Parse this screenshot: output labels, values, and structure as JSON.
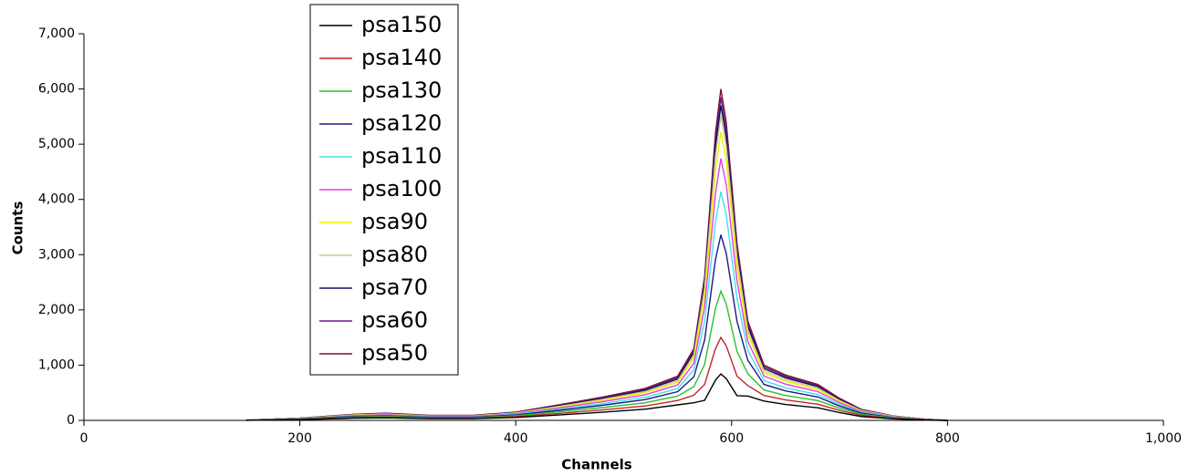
{
  "chart_data": {
    "type": "line",
    "xlabel": "Channels",
    "ylabel": "Counts",
    "xlim": [
      0,
      1000
    ],
    "ylim": [
      0,
      7000
    ],
    "xticks": [
      0,
      200,
      400,
      600,
      800,
      {
        "value": 1000,
        "label": "1,000"
      }
    ],
    "yticks": [
      0,
      {
        "value": 1000,
        "label": "1,000"
      },
      {
        "value": 2000,
        "label": "2,000"
      },
      {
        "value": 3000,
        "label": "3,000"
      },
      {
        "value": 4000,
        "label": "4,000"
      },
      {
        "value": 5000,
        "label": "5,000"
      },
      {
        "value": 6000,
        "label": "6,000"
      },
      {
        "value": 7000,
        "label": "7,000"
      }
    ],
    "legend": "top-left",
    "x": [
      150,
      200,
      250,
      280,
      320,
      360,
      400,
      440,
      480,
      520,
      550,
      565,
      575,
      585,
      590,
      595,
      605,
      615,
      630,
      650,
      680,
      700,
      720,
      750,
      780,
      800
    ],
    "series": [
      {
        "name": "psa150",
        "color": "#000000",
        "values": [
          2,
          14,
          39,
          46,
          32,
          32,
          53,
          98,
          147,
          203,
          280,
          319,
          364,
          728,
          840,
          756,
          448,
          441,
          350,
          287,
          228,
          140,
          70,
          28,
          7,
          0
        ]
      },
      {
        "name": "psa140",
        "color": "#c0282a",
        "values": [
          2,
          18,
          50,
          59,
          41,
          41,
          68,
          126,
          189,
          261,
          360,
          455,
          650,
          1300,
          1500,
          1350,
          800,
          630,
          450,
          369,
          293,
          180,
          90,
          36,
          9,
          0
        ]
      },
      {
        "name": "psa130",
        "color": "#2ec02e",
        "values": [
          3,
          22,
          61,
          72,
          50,
          50,
          83,
          154,
          231,
          319,
          440,
          611,
          1014,
          2028,
          2340,
          2106,
          1248,
          846,
          550,
          451,
          358,
          220,
          110,
          44,
          11,
          0
        ]
      },
      {
        "name": "psa120",
        "color": "#1a1a8a",
        "values": [
          3,
          26,
          72,
          85,
          59,
          59,
          98,
          182,
          273,
          377,
          520,
          787,
          1456,
          2912,
          3360,
          3024,
          1792,
          1089,
          650,
          533,
          423,
          260,
          130,
          52,
          13,
          0
        ]
      },
      {
        "name": "psa110",
        "color": "#44e0e8",
        "values": [
          4,
          29,
          79,
          94,
          65,
          65,
          108,
          202,
          302,
          418,
          576,
          917,
          1794,
          3588,
          4140,
          3726,
          2208,
          1269,
          720,
          590,
          468,
          288,
          144,
          58,
          14,
          0
        ]
      },
      {
        "name": "psa100",
        "color": "#e040e0",
        "values": [
          4,
          32,
          88,
          104,
          72,
          72,
          120,
          224,
          336,
          464,
          640,
          1034,
          2054,
          4108,
          4740,
          4266,
          2528,
          1431,
          800,
          656,
          520,
          320,
          160,
          64,
          16,
          0
        ]
      },
      {
        "name": "psa90",
        "color": "#f0f000",
        "values": [
          4,
          34,
          95,
          112,
          77,
          77,
          129,
          241,
          361,
          499,
          688,
          1125,
          2262,
          4524,
          5220,
          4698,
          2784,
          1557,
          860,
          705,
          559,
          344,
          172,
          69,
          17,
          0
        ]
      },
      {
        "name": "psa80",
        "color": "#c8c890",
        "values": [
          5,
          36,
          99,
          117,
          81,
          81,
          135,
          252,
          378,
          522,
          720,
          1183,
          2392,
          4784,
          5520,
          4968,
          2944,
          1638,
          900,
          738,
          585,
          360,
          180,
          72,
          18,
          0
        ]
      },
      {
        "name": "psa70",
        "color": "#101060",
        "values": [
          5,
          38,
          103,
          122,
          85,
          85,
          141,
          263,
          395,
          545,
          752,
          1229,
          2470,
          4940,
          5700,
          5130,
          3040,
          1701,
          940,
          771,
          611,
          376,
          188,
          75,
          19,
          0
        ]
      },
      {
        "name": "psa60",
        "color": "#6a1a8a",
        "values": [
          5,
          39,
          107,
          126,
          87,
          87,
          146,
          272,
          407,
          563,
          776,
          1264,
          2535,
          5070,
          5850,
          5265,
          3120,
          1751,
          970,
          795,
          631,
          388,
          194,
          78,
          19,
          0
        ]
      },
      {
        "name": "psa50",
        "color": "#7a1020",
        "values": [
          5,
          40,
          110,
          130,
          90,
          90,
          150,
          280,
          420,
          580,
          800,
          1300,
          2600,
          5200,
          6000,
          5400,
          3200,
          1800,
          1000,
          820,
          650,
          400,
          200,
          80,
          20,
          0
        ]
      }
    ]
  }
}
